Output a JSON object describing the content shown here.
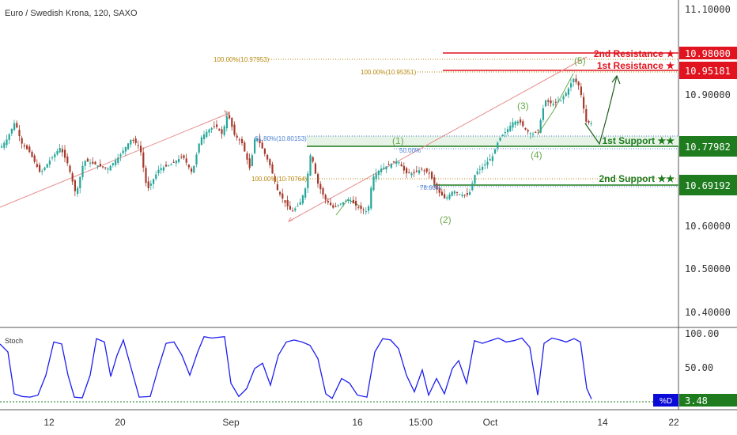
{
  "header": {
    "symbol_title": "Euro / Swedish Krona, 120, SAXO"
  },
  "colors": {
    "up_candle": "#26a69a",
    "down_candle": "#a63a2c",
    "resistance": "#e0131e",
    "support": "#1e7b1e",
    "support_zone": "#e6f3e6",
    "trendline": "#e88c8c",
    "fib_label": "#b8860b",
    "fib_blue": "#4a7fd4",
    "wave_label": "#6aaa4a",
    "stoch_line": "#1d1df0",
    "stoch_badge": "#0b0bd8",
    "axis_text": "#333333"
  },
  "price_axis": {
    "labels": [
      "11.10000",
      "10.90000",
      "10.60000",
      "10.50000",
      "10.40000"
    ]
  },
  "time_axis": {
    "labels": [
      "12",
      "20",
      "Sep",
      "16",
      "15:00",
      "Oct",
      "14",
      "22"
    ]
  },
  "levels": {
    "r2": {
      "label": "2nd Resistance ★",
      "price": "10.98000"
    },
    "r1": {
      "label": "1st Resistance ★",
      "price": "10.95181"
    },
    "s1": {
      "label": "1st Support ★★",
      "price": "10.77982"
    },
    "s2": {
      "label": "2nd Support ★★",
      "price": "10.69192"
    }
  },
  "fib_labels": {
    "f1": "100.00%(10.97953)",
    "f2": "100.00%(10.95351)",
    "f3": "61.80%(10.80153)",
    "f4": "50.00%",
    "f5": "100.00%(10.70764)",
    "f6": "78.60%"
  },
  "waves": [
    "(1)",
    "(2)",
    "(3)",
    "(4)",
    "(5)"
  ],
  "stoch": {
    "label": "Stoch",
    "axis_labels": [
      "100.00",
      "50.00"
    ],
    "badge_label": "%D",
    "value": "3.48"
  },
  "chart_data": {
    "type": "candlestick",
    "symbol": "Euro / Swedish Krona",
    "timeframe": "120",
    "source": "SAXO",
    "ylim": [
      10.38,
      11.12
    ],
    "x_ticks": [
      "12",
      "20",
      "Sep",
      "16",
      "15:00",
      "Oct",
      "14",
      "22"
    ],
    "price_path": [
      [
        0,
        10.78
      ],
      [
        8,
        10.8
      ],
      [
        18,
        10.84
      ],
      [
        26,
        10.79
      ],
      [
        36,
        10.77
      ],
      [
        50,
        10.72
      ],
      [
        62,
        10.75
      ],
      [
        75,
        10.78
      ],
      [
        85,
        10.74
      ],
      [
        95,
        10.67
      ],
      [
        105,
        10.75
      ],
      [
        120,
        10.74
      ],
      [
        135,
        10.73
      ],
      [
        150,
        10.76
      ],
      [
        165,
        10.8
      ],
      [
        176,
        10.78
      ],
      [
        185,
        10.68
      ],
      [
        200,
        10.73
      ],
      [
        215,
        10.74
      ],
      [
        230,
        10.76
      ],
      [
        242,
        10.72
      ],
      [
        252,
        10.8
      ],
      [
        262,
        10.82
      ],
      [
        272,
        10.83
      ],
      [
        280,
        10.81
      ],
      [
        287,
        10.86
      ],
      [
        295,
        10.81
      ],
      [
        305,
        10.79
      ],
      [
        315,
        10.73
      ],
      [
        322,
        10.81
      ],
      [
        330,
        10.78
      ],
      [
        340,
        10.74
      ],
      [
        350,
        10.68
      ],
      [
        360,
        10.65
      ],
      [
        368,
        10.63
      ],
      [
        378,
        10.65
      ],
      [
        386,
        10.69
      ],
      [
        392,
        10.77
      ],
      [
        400,
        10.7
      ],
      [
        410,
        10.66
      ],
      [
        420,
        10.64
      ],
      [
        430,
        10.65
      ],
      [
        440,
        10.66
      ],
      [
        452,
        10.64
      ],
      [
        464,
        10.63
      ],
      [
        470,
        10.71
      ],
      [
        480,
        10.73
      ],
      [
        492,
        10.74
      ],
      [
        502,
        10.75
      ],
      [
        512,
        10.72
      ],
      [
        522,
        10.72
      ],
      [
        532,
        10.73
      ],
      [
        542,
        10.72
      ],
      [
        552,
        10.68
      ],
      [
        562,
        10.66
      ],
      [
        572,
        10.68
      ],
      [
        582,
        10.67
      ],
      [
        592,
        10.67
      ],
      [
        600,
        10.72
      ],
      [
        612,
        10.74
      ],
      [
        622,
        10.76
      ],
      [
        630,
        10.8
      ],
      [
        640,
        10.82
      ],
      [
        648,
        10.84
      ],
      [
        656,
        10.84
      ],
      [
        664,
        10.82
      ],
      [
        672,
        10.81
      ],
      [
        680,
        10.82
      ],
      [
        688,
        10.89
      ],
      [
        698,
        10.88
      ],
      [
        708,
        10.89
      ],
      [
        716,
        10.91
      ],
      [
        724,
        10.94
      ],
      [
        732,
        10.92
      ],
      [
        740,
        10.84
      ],
      [
        748,
        10.835
      ]
    ],
    "stoch_d": [
      [
        0,
        87
      ],
      [
        10,
        75
      ],
      [
        18,
        12
      ],
      [
        28,
        8
      ],
      [
        38,
        7
      ],
      [
        48,
        10
      ],
      [
        58,
        40
      ],
      [
        68,
        90
      ],
      [
        78,
        87
      ],
      [
        86,
        40
      ],
      [
        94,
        7
      ],
      [
        104,
        6
      ],
      [
        114,
        40
      ],
      [
        122,
        95
      ],
      [
        132,
        90
      ],
      [
        140,
        38
      ],
      [
        148,
        70
      ],
      [
        156,
        93
      ],
      [
        166,
        50
      ],
      [
        176,
        7
      ],
      [
        190,
        8
      ],
      [
        200,
        50
      ],
      [
        210,
        88
      ],
      [
        220,
        90
      ],
      [
        230,
        70
      ],
      [
        240,
        40
      ],
      [
        250,
        75
      ],
      [
        258,
        98
      ],
      [
        268,
        96
      ],
      [
        276,
        97
      ],
      [
        284,
        98
      ],
      [
        292,
        28
      ],
      [
        302,
        8
      ],
      [
        312,
        20
      ],
      [
        322,
        50
      ],
      [
        332,
        58
      ],
      [
        342,
        25
      ],
      [
        352,
        70
      ],
      [
        362,
        90
      ],
      [
        372,
        93
      ],
      [
        382,
        90
      ],
      [
        392,
        85
      ],
      [
        402,
        65
      ],
      [
        412,
        12
      ],
      [
        420,
        5
      ],
      [
        432,
        35
      ],
      [
        442,
        28
      ],
      [
        452,
        10
      ],
      [
        464,
        7
      ],
      [
        474,
        75
      ],
      [
        484,
        95
      ],
      [
        494,
        93
      ],
      [
        504,
        80
      ],
      [
        514,
        40
      ],
      [
        524,
        15
      ],
      [
        534,
        48
      ],
      [
        542,
        10
      ],
      [
        552,
        35
      ],
      [
        562,
        12
      ],
      [
        572,
        50
      ],
      [
        580,
        62
      ],
      [
        590,
        28
      ],
      [
        600,
        92
      ],
      [
        610,
        88
      ],
      [
        620,
        92
      ],
      [
        630,
        96
      ],
      [
        640,
        90
      ],
      [
        650,
        92
      ],
      [
        660,
        96
      ],
      [
        670,
        82
      ],
      [
        680,
        10
      ],
      [
        688,
        88
      ],
      [
        698,
        96
      ],
      [
        708,
        93
      ],
      [
        716,
        90
      ],
      [
        726,
        95
      ],
      [
        734,
        90
      ],
      [
        742,
        20
      ],
      [
        748,
        4
      ]
    ],
    "stoch_current": 3.48,
    "annotations": {
      "resistance": [
        10.98,
        10.95181
      ],
      "support": [
        10.77982,
        10.69192
      ],
      "fib": [
        {
          "level": "100.00%",
          "price": 10.97953
        },
        {
          "level": "100.00%",
          "price": 10.95351
        },
        {
          "level": "61.80%",
          "price": 10.80153
        },
        {
          "level": "50.00%"
        },
        {
          "level": "100.00%",
          "price": 10.70764
        },
        {
          "level": "78.60%"
        }
      ],
      "elliott_waves": [
        "(1)",
        "(2)",
        "(3)",
        "(4)",
        "(5)"
      ]
    }
  }
}
